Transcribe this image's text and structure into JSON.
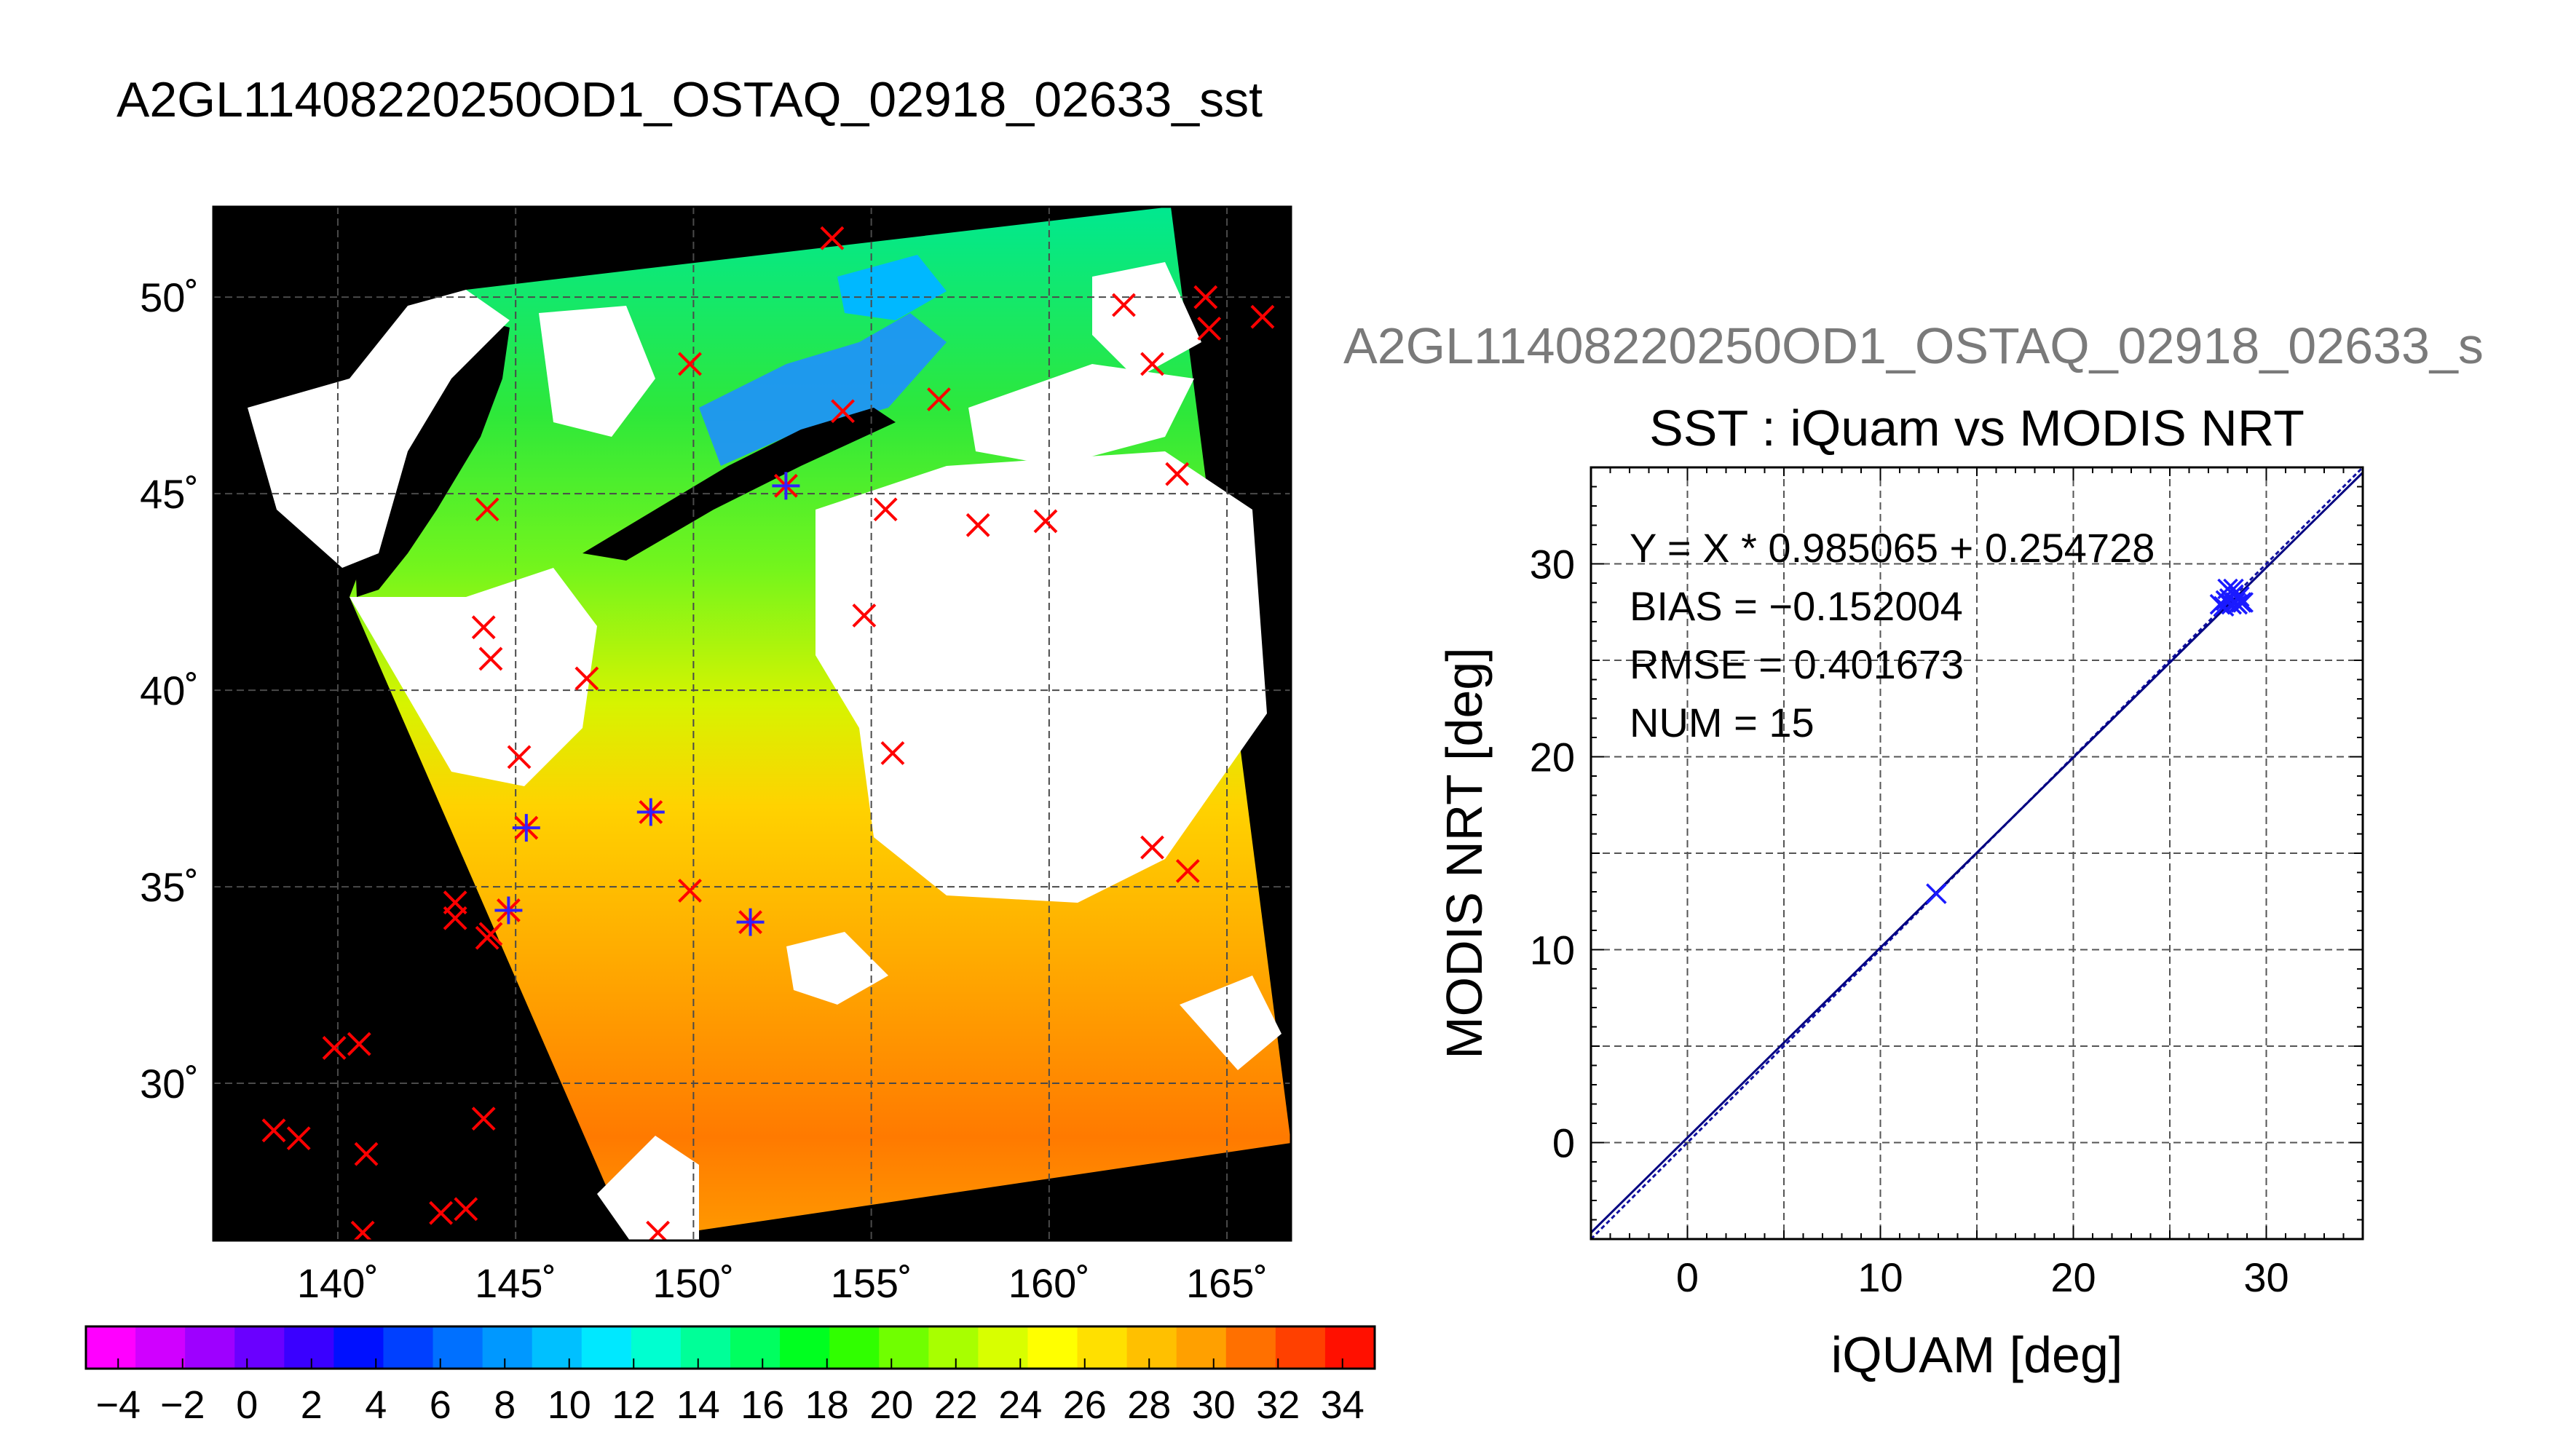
{
  "figure": {
    "main_title": "A2GL11408220250OD1_OSTAQ_02918_02633_sst",
    "sub_title": "A2GL11408220250OD1_OSTAQ_02918_02633_s"
  },
  "chart_data": [
    {
      "type": "map",
      "lon_range": [
        136.5,
        166.8
      ],
      "lat_range": [
        26.0,
        52.3
      ],
      "grid": true,
      "x_ticks": [
        "140˚",
        "145˚",
        "150˚",
        "155˚",
        "160˚",
        "165˚"
      ],
      "y_ticks": [
        "30˚",
        "35˚",
        "40˚",
        "45˚",
        "50˚"
      ],
      "x_tick_values": [
        140,
        145,
        150,
        155,
        160,
        165
      ],
      "y_tick_values": [
        30,
        35,
        40,
        45,
        50
      ],
      "markers": {
        "x_red": [
          [
            153.9,
            51.5
          ],
          [
            162.1,
            49.8
          ],
          [
            164.4,
            50.0
          ],
          [
            164.5,
            49.2
          ],
          [
            166.0,
            49.5
          ],
          [
            149.9,
            48.3
          ],
          [
            154.2,
            47.1
          ],
          [
            156.9,
            47.4
          ],
          [
            162.9,
            48.3
          ],
          [
            163.6,
            45.5
          ],
          [
            144.2,
            44.6
          ],
          [
            155.4,
            44.6
          ],
          [
            158.0,
            44.2
          ],
          [
            159.9,
            44.3
          ],
          [
            154.8,
            41.9
          ],
          [
            144.1,
            41.6
          ],
          [
            144.3,
            40.8
          ],
          [
            147.0,
            40.3
          ],
          [
            155.6,
            38.4
          ],
          [
            145.1,
            38.3
          ],
          [
            162.9,
            36.0
          ],
          [
            163.9,
            35.4
          ],
          [
            149.9,
            34.9
          ],
          [
            143.3,
            34.6
          ],
          [
            143.3,
            34.2
          ],
          [
            144.2,
            33.7
          ],
          [
            144.3,
            33.8
          ],
          [
            139.9,
            30.9
          ],
          [
            140.6,
            31.0
          ],
          [
            144.1,
            29.1
          ],
          [
            138.2,
            28.8
          ],
          [
            138.9,
            28.6
          ],
          [
            140.8,
            28.2
          ],
          [
            142.9,
            26.7
          ],
          [
            143.6,
            26.8
          ],
          [
            140.7,
            26.2
          ],
          [
            149.0,
            26.2
          ]
        ],
        "star_blue": [
          [
            152.6,
            45.2
          ],
          [
            145.3,
            36.5
          ],
          [
            148.8,
            36.9
          ],
          [
            144.8,
            34.4
          ],
          [
            151.6,
            34.1
          ]
        ]
      }
    },
    {
      "type": "scatter",
      "title": "SST : iQuam vs MODIS NRT",
      "xlabel": "iQUAM [deg]",
      "ylabel": "MODIS NRT [deg]",
      "xlim": [
        -5,
        35
      ],
      "ylim": [
        -5,
        35
      ],
      "x_ticks": [
        0,
        10,
        20,
        30
      ],
      "y_ticks": [
        0,
        10,
        20,
        30
      ],
      "grid": true,
      "annotations": [
        "Y = X * 0.985065 + 0.254728",
        "BIAS = −0.152004",
        "RMSE = 0.401673",
        "NUM = 15"
      ],
      "fit": {
        "slope": 0.985065,
        "intercept": 0.254728
      },
      "points": [
        [
          12.9,
          12.9
        ],
        [
          27.6,
          27.9
        ],
        [
          27.9,
          28.1
        ],
        [
          28.0,
          28.7
        ],
        [
          28.2,
          27.9
        ],
        [
          28.3,
          28.4
        ],
        [
          28.4,
          28.0
        ],
        [
          28.5,
          27.9
        ],
        [
          28.6,
          28.3
        ],
        [
          28.7,
          28.0
        ],
        [
          28.1,
          28.2
        ],
        [
          28.3,
          28.7
        ],
        [
          28.5,
          28.2
        ],
        [
          27.8,
          27.8
        ],
        [
          28.8,
          28.0
        ]
      ]
    },
    {
      "type": "colorbar",
      "range": [
        -5,
        35
      ],
      "tick_labels": [
        "−4",
        "−2",
        "0",
        "2",
        "4",
        "6",
        "8",
        "10",
        "12",
        "14",
        "16",
        "18",
        "20",
        "22",
        "24",
        "26",
        "28",
        "30",
        "32",
        "34"
      ],
      "tick_values": [
        -4,
        -2,
        0,
        2,
        4,
        6,
        8,
        10,
        12,
        14,
        16,
        18,
        20,
        22,
        24,
        26,
        28,
        30,
        32,
        34
      ],
      "colors": [
        "#ff00ff",
        "#d000ff",
        "#9e00ff",
        "#6a00ff",
        "#3a00ff",
        "#0010ff",
        "#0040ff",
        "#0070ff",
        "#0098ff",
        "#00c0ff",
        "#00e8ff",
        "#00ffd0",
        "#00ff98",
        "#00ff60",
        "#00ff20",
        "#30ff00",
        "#70ff00",
        "#a8ff00",
        "#d8ff00",
        "#ffff00",
        "#ffe000",
        "#ffc000",
        "#ffa000",
        "#ff7000",
        "#ff4000",
        "#ff1000"
      ]
    }
  ]
}
